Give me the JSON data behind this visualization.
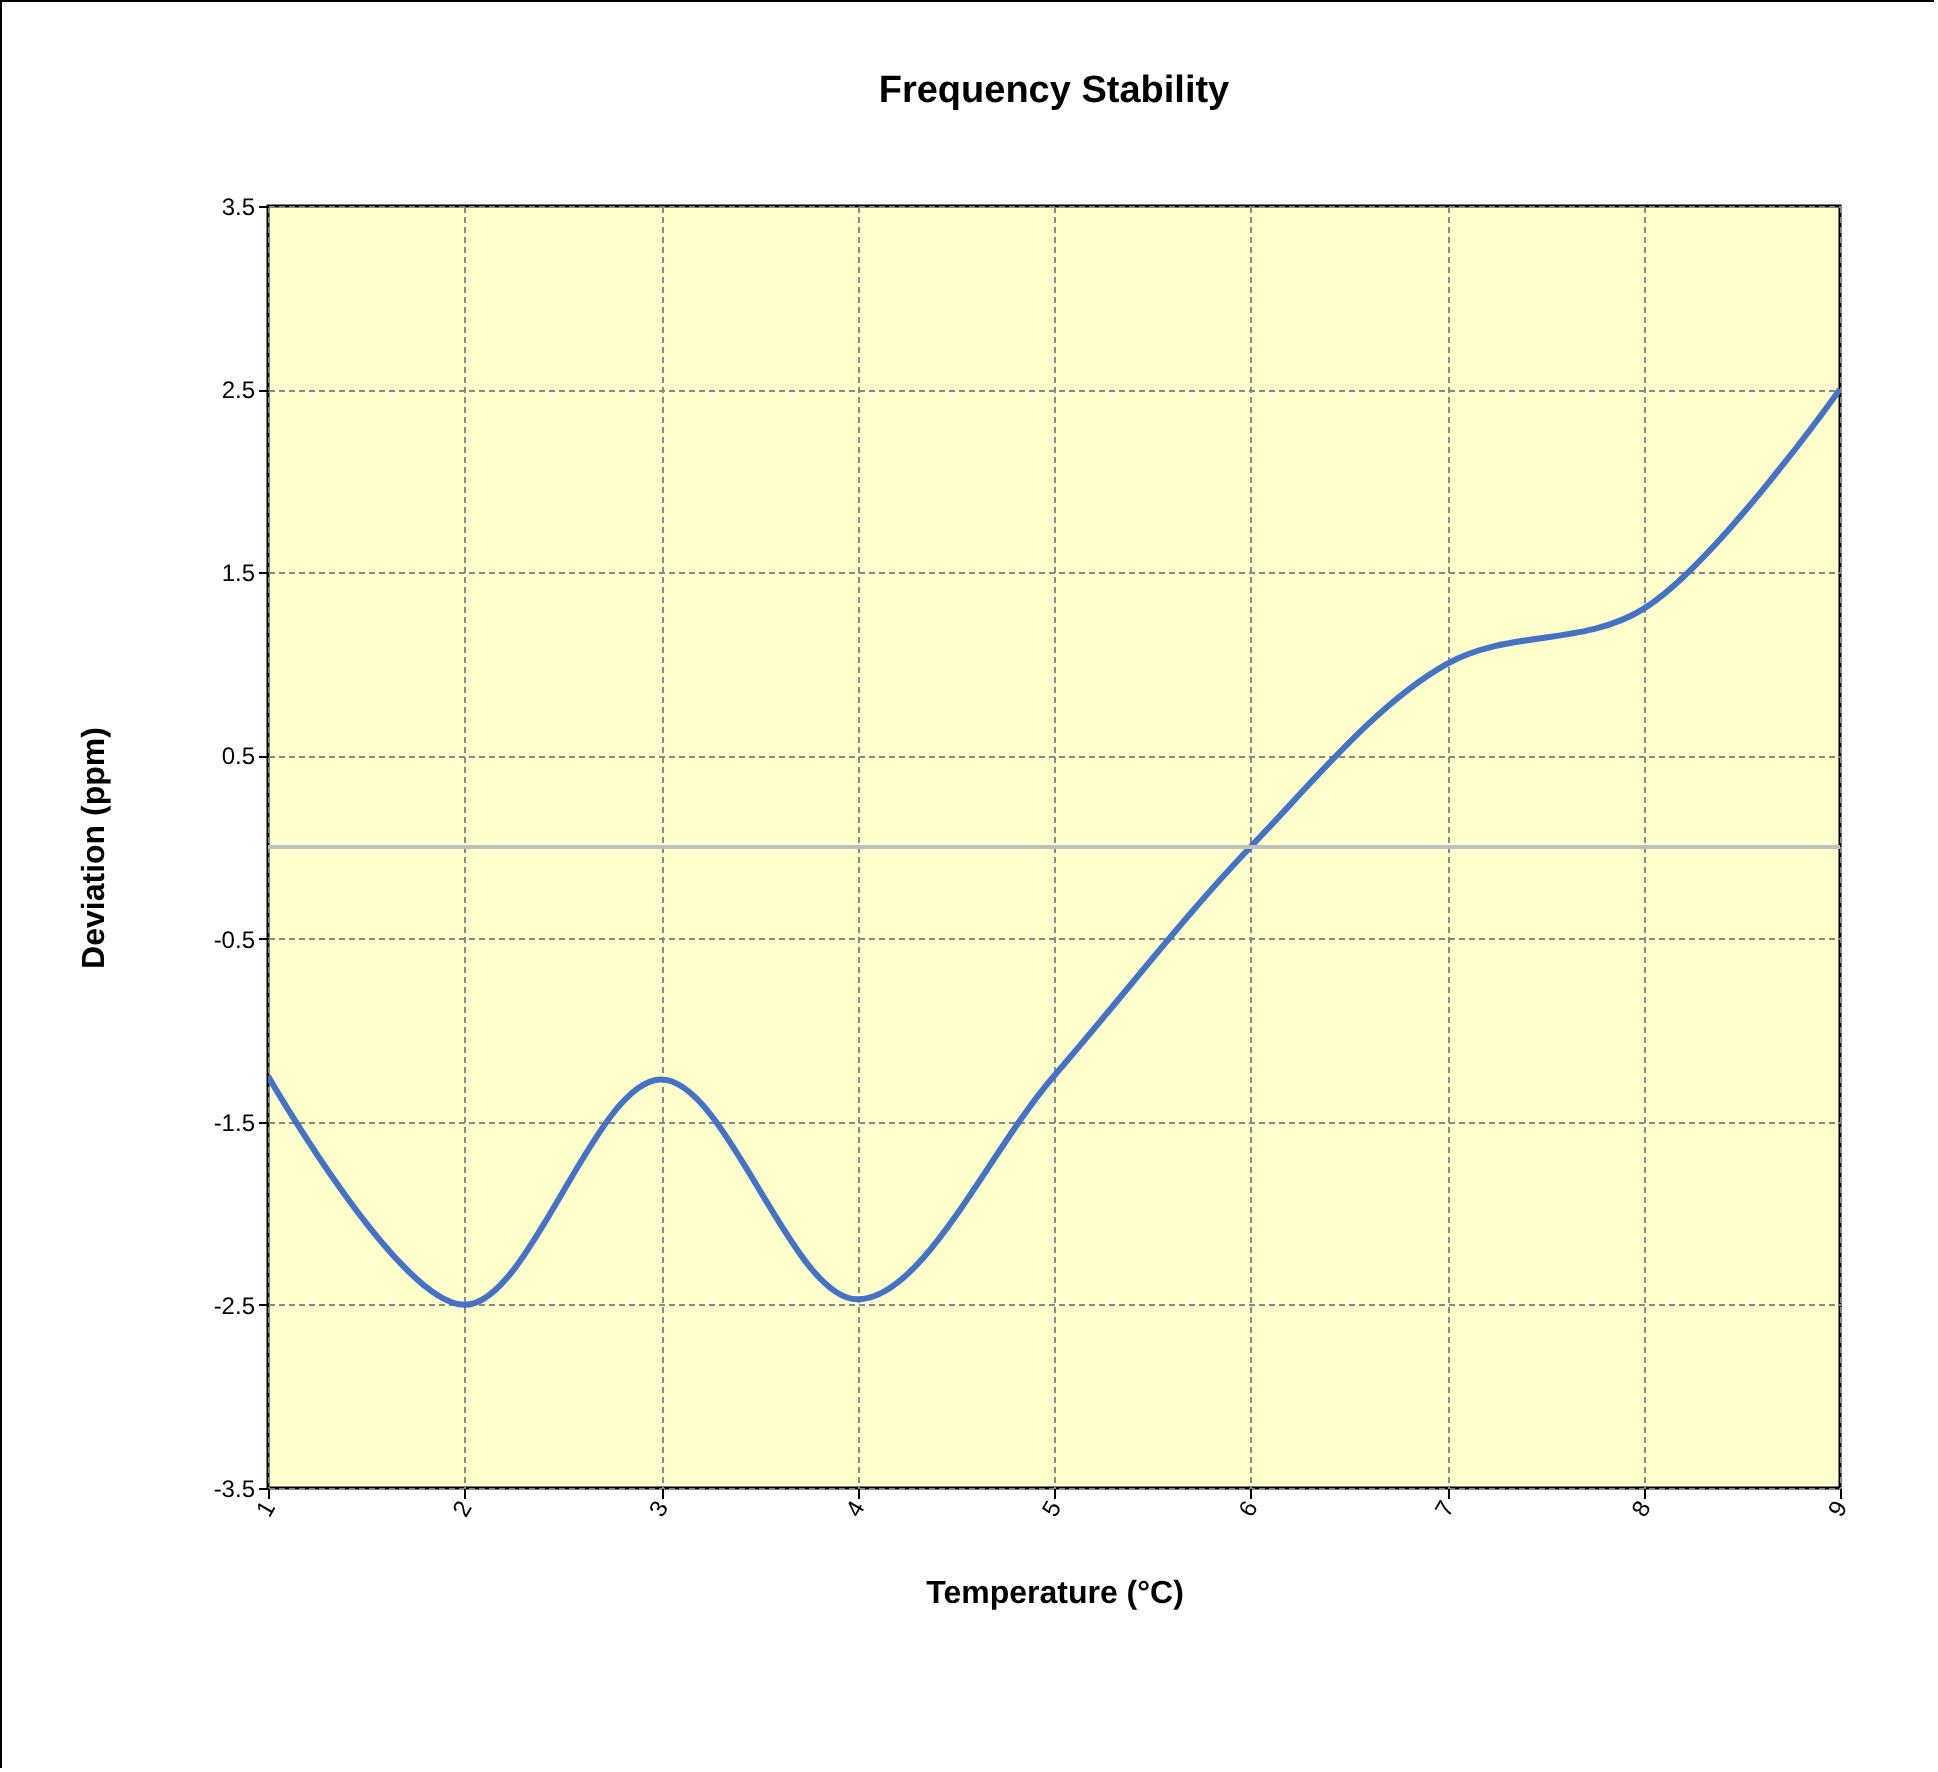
{
  "chart_data": {
    "type": "line",
    "title": "Frequency Stability",
    "xlabel": "Temperature  (°C)",
    "ylabel": "Deviation  (ppm)",
    "categories": [
      "1",
      "2",
      "3",
      "4",
      "5",
      "6",
      "7",
      "8",
      "9"
    ],
    "series": [
      {
        "color": "#4472c4",
        "values": [
          -1.25,
          -2.5,
          -1.27,
          -2.47,
          -1.25,
          0,
          1.0,
          1.3,
          2.5
        ]
      }
    ],
    "ylim": [
      -3.5,
      3.5
    ],
    "yticks": [
      -3.5,
      -2.5,
      -1.5,
      -0.5,
      0.5,
      1.5,
      2.5,
      3.5
    ],
    "ref_lines": [
      {
        "axis": "y",
        "value": 0,
        "color": "#c0c0c0"
      }
    ],
    "grid": true
  }
}
